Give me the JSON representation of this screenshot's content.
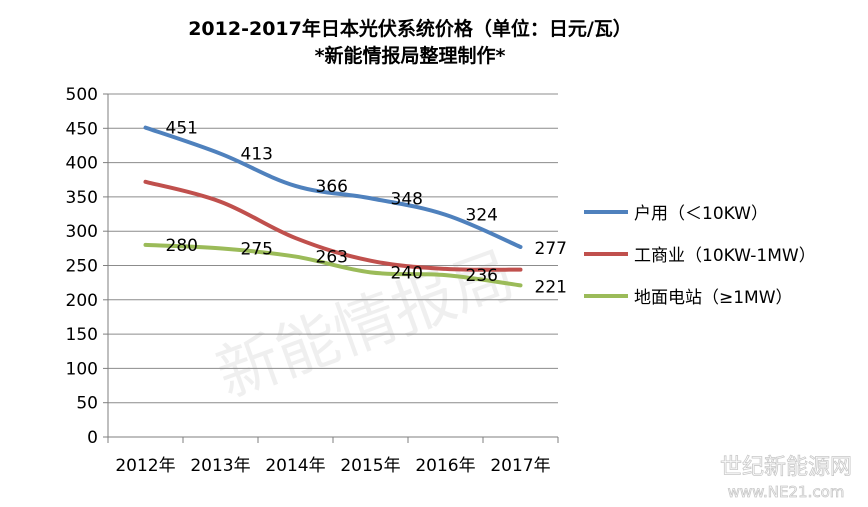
{
  "chart_data": {
    "type": "line",
    "title": "2012-2017年日本光伏系统价格（单位：日元/瓦）",
    "subtitle": "*新能情报局整理制作*",
    "categories": [
      "2012年",
      "2013年",
      "2014年",
      "2015年",
      "2016年",
      "2017年"
    ],
    "ylim": [
      0,
      500
    ],
    "yticks": [
      "0",
      "50",
      "100",
      "150",
      "200",
      "250",
      "300",
      "350",
      "400",
      "450",
      "500"
    ],
    "grid": true,
    "legend_position": "right",
    "series": [
      {
        "name": "户用（＜10KW）",
        "color": "#4f81bd",
        "values": [
          451,
          413,
          366,
          348,
          324,
          277
        ],
        "labels": [
          "451",
          "413",
          "366",
          "348",
          "324",
          "277"
        ]
      },
      {
        "name": "工商业（10KW-1MW）",
        "color": "#c0504d",
        "values": [
          372,
          343,
          290,
          257,
          245,
          244
        ],
        "labels": []
      },
      {
        "name": "地面电站（≥1MW）",
        "color": "#9bbb59",
        "values": [
          280,
          275,
          263,
          240,
          236,
          221
        ],
        "labels": [
          "280",
          "275",
          "263",
          "240",
          "236",
          "221"
        ]
      }
    ]
  },
  "watermark": "新能情报局",
  "site_mark": {
    "name": "世纪新能源网",
    "url": "www.NE21.com"
  }
}
